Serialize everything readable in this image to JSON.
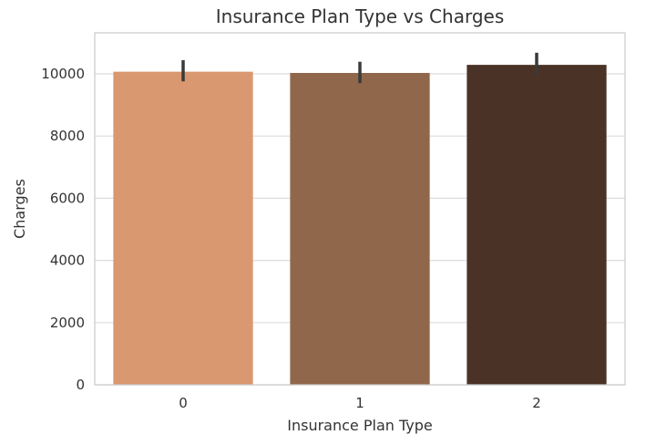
{
  "chart_data": {
    "type": "bar",
    "title": "Insurance Plan Type vs Charges",
    "xlabel": "Insurance Plan Type",
    "ylabel": "Charges",
    "categories": [
      "0",
      "1",
      "2"
    ],
    "values": [
      10070,
      10030,
      10290
    ],
    "error_low": [
      9760,
      9700,
      9950
    ],
    "error_high": [
      10440,
      10390,
      10680
    ],
    "bar_colors": [
      "#d99870",
      "#91674b",
      "#4a3326"
    ],
    "error_color": "#3a3a3a",
    "ylim": [
      0,
      11320
    ],
    "yticks": [
      0,
      2000,
      4000,
      6000,
      8000,
      10000
    ],
    "ytick_labels": [
      "0",
      "2000",
      "4000",
      "6000",
      "8000",
      "10000"
    ],
    "grid": true,
    "grid_color": "#dddddd",
    "frame_color": "#cccccc"
  }
}
